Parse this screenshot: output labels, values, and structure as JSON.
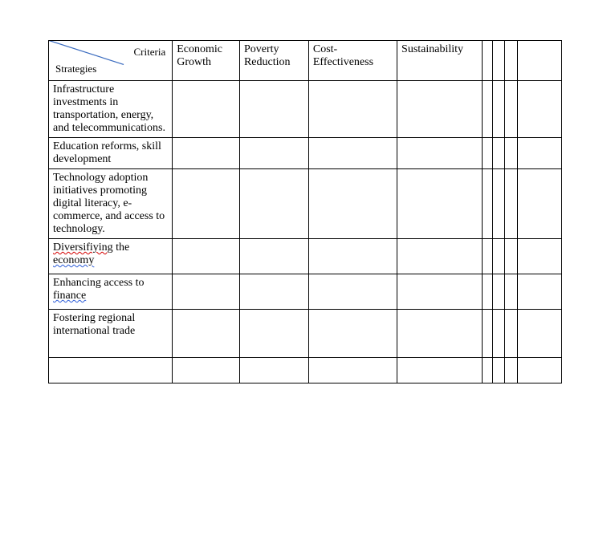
{
  "table": {
    "header": {
      "diagonal_top": "Criteria",
      "diagonal_bottom": "Strategies",
      "columns": [
        "Economic Growth",
        "Poverty Reduction",
        "Cost-Effectiveness",
        "Sustainability"
      ]
    },
    "rows": [
      {
        "label_parts": [
          {
            "text": "Infrastructure investments in transportation, energy, and telecommunications.",
            "underline": null
          }
        ]
      },
      {
        "label_parts": [
          {
            "text": "Education reforms, skill development",
            "underline": null
          }
        ]
      },
      {
        "label_parts": [
          {
            "text": "Technology adoption initiatives promoting digital literacy, e-commerce, and access to technology.",
            "underline": null
          }
        ]
      },
      {
        "label_parts": [
          {
            "text": "Diversifiying",
            "underline": "red"
          },
          {
            "text": " the ",
            "underline": null
          },
          {
            "text": "economy",
            "underline": "blue"
          }
        ]
      },
      {
        "label_parts": [
          {
            "text": "Enhancing access to ",
            "underline": null
          },
          {
            "text": "finance",
            "underline": "blue"
          }
        ]
      },
      {
        "label_parts": [
          {
            "text": "Fostering regional international trade",
            "underline": null
          }
        ]
      },
      {
        "label_parts": []
      }
    ],
    "style": {
      "border_color": "#000000",
      "background_color": "#ffffff",
      "font_family": "Times New Roman",
      "font_size_pt": 11,
      "diagonal_line_color": "#3a6bbf"
    }
  }
}
